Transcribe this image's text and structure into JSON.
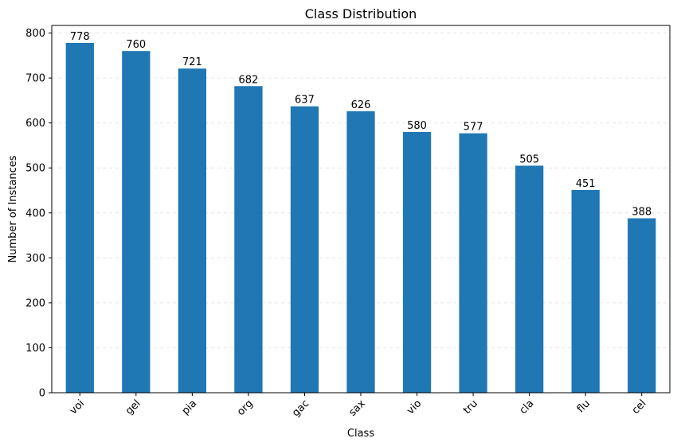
{
  "chart_data": {
    "type": "bar",
    "title": "Class Distribution",
    "xlabel": "Class",
    "ylabel": "Number of Instances",
    "categories": [
      "voi",
      "gel",
      "pia",
      "org",
      "gac",
      "sax",
      "vio",
      "tru",
      "cla",
      "flu",
      "cel"
    ],
    "values": [
      778,
      760,
      721,
      682,
      637,
      626,
      580,
      577,
      505,
      451,
      388
    ],
    "data_labels": [
      "778",
      "760",
      "721",
      "682",
      "637",
      "626",
      "580",
      "577",
      "505",
      "451",
      "388"
    ],
    "ylim": [
      0,
      816.9
    ],
    "yticks": [
      0,
      100,
      200,
      300,
      400,
      500,
      600,
      700,
      800
    ],
    "ytick_labels": [
      "0",
      "100",
      "200",
      "300",
      "400",
      "500",
      "600",
      "700",
      "800"
    ],
    "grid": "y-dashed",
    "bar_color": "#1f77b4",
    "xtick_rotation": 45
  }
}
